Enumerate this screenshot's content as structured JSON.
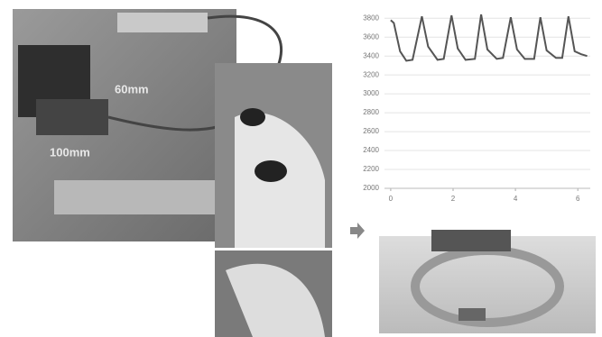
{
  "photos": {
    "labels": [
      "60mm",
      "100mm"
    ]
  },
  "chart_data": {
    "type": "line",
    "x": [
      0,
      0.1,
      0.3,
      0.5,
      0.7,
      1.0,
      1.2,
      1.5,
      1.7,
      1.95,
      2.15,
      2.4,
      2.7,
      2.9,
      3.1,
      3.4,
      3.6,
      3.85,
      4.05,
      4.3,
      4.6,
      4.8,
      5.0,
      5.3,
      5.5,
      5.7,
      5.9,
      6.1,
      6.3
    ],
    "series": [
      {
        "color": "#555555",
        "values": [
          3780,
          3750,
          3450,
          3350,
          3360,
          3820,
          3500,
          3360,
          3370,
          3830,
          3480,
          3360,
          3370,
          3840,
          3470,
          3370,
          3380,
          3810,
          3470,
          3370,
          3370,
          3810,
          3460,
          3380,
          3380,
          3820,
          3450,
          3420,
          3400
        ]
      }
    ],
    "xlim": [
      -0.2,
      6.4
    ],
    "xticks": [
      0,
      2,
      4,
      6
    ],
    "ylim": [
      2000,
      3850
    ],
    "yticks": [
      2000,
      2200,
      2400,
      2600,
      2800,
      3000,
      3200,
      3400,
      3600,
      3800
    ],
    "grid": true
  }
}
